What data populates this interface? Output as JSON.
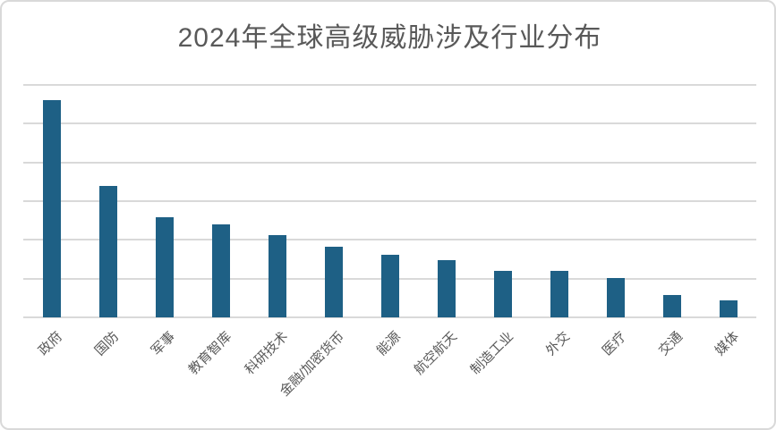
{
  "window": {
    "background": "#ffffff",
    "border_color": "#d9d9d9"
  },
  "chart_data": {
    "type": "bar",
    "title": "2024年全球高级威胁涉及行业分布",
    "categories": [
      "政府",
      "国防",
      "军事",
      "教育智库",
      "科研技术",
      "金融/加密货币",
      "能源",
      "航空航天",
      "制造工业",
      "外交",
      "医疗",
      "交通",
      "媒体"
    ],
    "values": [
      5.61,
      3.39,
      2.59,
      2.39,
      2.12,
      1.82,
      1.61,
      1.48,
      1.21,
      1.21,
      1.01,
      0.58,
      0.43
    ],
    "xlabel": "",
    "ylabel": "",
    "ylim": [
      0,
      6
    ],
    "y_axis_unlabeled": true,
    "gridlines": "horizontal",
    "gridline_count": 7,
    "x_label_rotation_deg": 45,
    "legend": "none",
    "colors": {
      "bar": "#1e6085",
      "title": "#595959",
      "axis_labels": "#595959",
      "gridline": "#d9d9d9"
    }
  }
}
